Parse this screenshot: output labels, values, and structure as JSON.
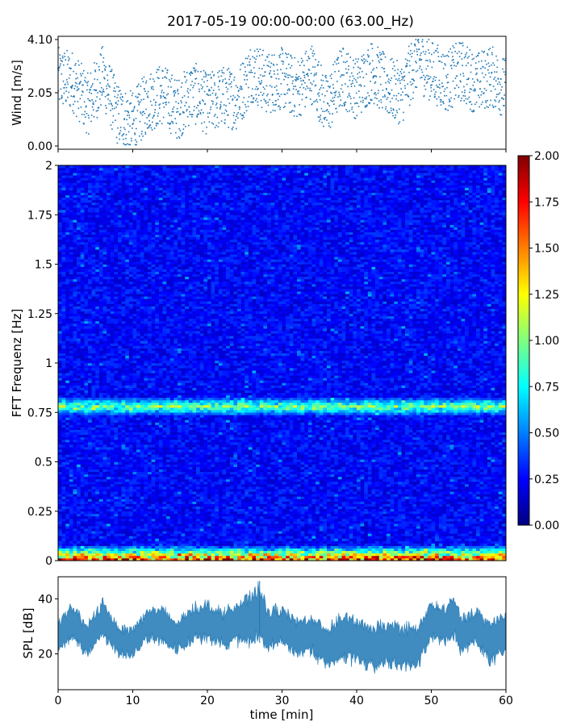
{
  "title": "2017-05-19 00:00-00:00 (63.00_Hz)",
  "colors": {
    "series": "#1f77b4",
    "jet": [
      "#00007f",
      "#0000ff",
      "#007fff",
      "#00ffff",
      "#7fff7f",
      "#ffff00",
      "#ff7f00",
      "#ff0000",
      "#7f0000"
    ]
  },
  "chart_data": [
    {
      "type": "scatter",
      "panel": "wind",
      "ylabel": "Wind [m/s]",
      "ylim": [
        0,
        4.1
      ],
      "xlim": [
        0,
        60
      ],
      "yticks": [
        0.0,
        2.05,
        4.1
      ],
      "ytick_labels": [
        "0.00",
        "2.05",
        "4.10"
      ],
      "grid": false,
      "series": [
        {
          "x": [
            0,
            2,
            4,
            6,
            8,
            10,
            12,
            14,
            16,
            18,
            20,
            22,
            24,
            26,
            28,
            30,
            32,
            34,
            36,
            38,
            40,
            42,
            44,
            46,
            48,
            50,
            52,
            54,
            56,
            58,
            60
          ],
          "values": [
            2.6,
            2.5,
            1.6,
            2.7,
            1.2,
            0.9,
            1.7,
            2.0,
            1.4,
            2.1,
            1.6,
            1.9,
            1.8,
            2.9,
            2.4,
            2.6,
            2.2,
            2.8,
            1.5,
            2.7,
            2.2,
            2.9,
            2.3,
            2.0,
            3.3,
            2.9,
            2.5,
            2.9,
            2.4,
            2.7,
            2.2
          ]
        }
      ]
    },
    {
      "type": "heatmap",
      "panel": "spectrogram",
      "ylabel": "FFT Frequenz [Hz]",
      "xlim": [
        0,
        60
      ],
      "ylim": [
        0,
        2
      ],
      "yticks": [
        0,
        0.25,
        0.5,
        0.75,
        1,
        1.25,
        1.5,
        1.75,
        2
      ],
      "ytick_labels": [
        "0",
        "0.25",
        "0.5",
        "0.75",
        "1",
        "1.25",
        "1.5",
        "1.75",
        "2"
      ],
      "colormap": "jet",
      "colorbar": {
        "range": [
          0,
          2
        ],
        "ticks": [
          0,
          0.25,
          0.5,
          0.75,
          1.0,
          1.25,
          1.5,
          1.75,
          2.0
        ],
        "tick_labels": [
          "0.00",
          "0.25",
          "0.50",
          "0.75",
          "1.00",
          "1.25",
          "1.50",
          "1.75",
          "2.00"
        ]
      },
      "features": [
        {
          "freq_hz": 0.78,
          "t_start": 0,
          "t_end": 60,
          "level": 0.8
        },
        {
          "freq_hz": 0.02,
          "t_start": 0,
          "t_end": 60,
          "level": 1.6
        }
      ],
      "background_level": 0.25
    },
    {
      "type": "area",
      "panel": "spl",
      "ylabel": "SPL [dB]",
      "xlabel": "time [min]",
      "xlim": [
        0,
        60
      ],
      "ylim": [
        7,
        48
      ],
      "xticks": [
        0,
        10,
        20,
        30,
        40,
        50,
        60
      ],
      "xtick_labels": [
        "0",
        "10",
        "20",
        "30",
        "40",
        "50",
        "60"
      ],
      "yticks": [
        20,
        40
      ],
      "ytick_labels": [
        "20",
        "40"
      ],
      "series": [
        {
          "x": [
            0,
            2,
            4,
            6,
            8,
            10,
            12,
            14,
            16,
            18,
            20,
            22,
            24,
            26,
            27,
            28,
            30,
            32,
            34,
            36,
            38,
            40,
            42,
            44,
            46,
            48,
            50,
            52,
            53,
            54,
            56,
            58,
            60
          ],
          "values": [
            27,
            31,
            25,
            33,
            25,
            24,
            31,
            30,
            26,
            31,
            32,
            29,
            31,
            33,
            35,
            29,
            30,
            26,
            27,
            22,
            26,
            25,
            22,
            24,
            23,
            22,
            32,
            30,
            34,
            27,
            30,
            24,
            28
          ],
          "spread": [
            5,
            6,
            5,
            6,
            5,
            5,
            5,
            6,
            5,
            6,
            6,
            6,
            7,
            8,
            10,
            7,
            6,
            6,
            6,
            7,
            8,
            7,
            7,
            7,
            7,
            7,
            6,
            6,
            7,
            6,
            6,
            7,
            6
          ]
        }
      ]
    }
  ]
}
